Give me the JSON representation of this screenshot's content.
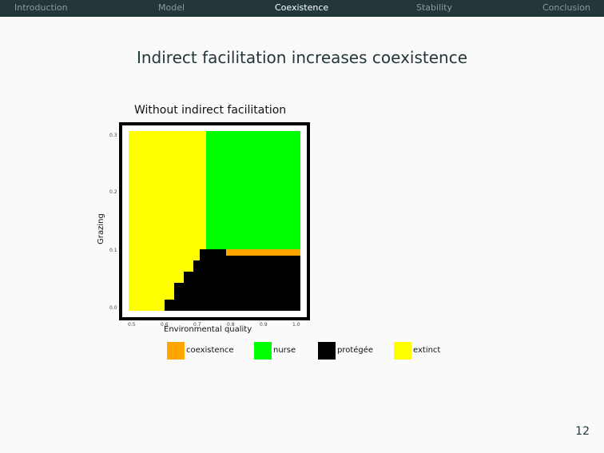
{
  "nav": [
    {
      "label": "Introduction",
      "active": false
    },
    {
      "label": "Model",
      "active": false
    },
    {
      "label": "Coexistence",
      "active": true
    },
    {
      "label": "Stability",
      "active": false
    },
    {
      "label": "Conclusion",
      "active": false
    }
  ],
  "slide": {
    "title": "Indirect facilitation increases coexistence",
    "page_number": "12"
  },
  "chart_data": {
    "type": "heatmap",
    "title": "Without indirect facilitation",
    "xlabel": "Environmental quality",
    "ylabel": "Grazing",
    "xlim": [
      0.47,
      1.0
    ],
    "ylim": [
      -0.01,
      0.31
    ],
    "x_ticks": [
      "0.5",
      "0.6",
      "0.7",
      "0.8",
      "0.9",
      "1.0"
    ],
    "y_ticks": [
      "0.0",
      "0.1",
      "0.2",
      "0.3"
    ],
    "legend": [
      {
        "label": "coexistence",
        "color": "#ffa500"
      },
      {
        "label": "nurse",
        "color": "#00ff00"
      },
      {
        "label": "protégée",
        "color": "#000000"
      },
      {
        "label": "extinct",
        "color": "#ffff00"
      }
    ],
    "regions": [
      {
        "state": "extinct",
        "x": [
          0.47,
          0.71
        ],
        "y": [
          -0.01,
          0.31
        ]
      },
      {
        "state": "nurse",
        "x": [
          0.71,
          1.0
        ],
        "y": [
          0.1,
          0.31
        ]
      },
      {
        "state": "coexistence",
        "x": [
          0.71,
          1.0
        ],
        "y": [
          0.08,
          0.1
        ]
      },
      {
        "state": "protégée",
        "x": [
          0.58,
          1.0
        ],
        "y": [
          -0.01,
          0.01
        ]
      },
      {
        "state": "protégée",
        "x": [
          0.61,
          1.0
        ],
        "y": [
          0.01,
          0.04
        ]
      },
      {
        "state": "protégée",
        "x": [
          0.64,
          1.0
        ],
        "y": [
          0.04,
          0.06
        ]
      },
      {
        "state": "protégée",
        "x": [
          0.67,
          1.0
        ],
        "y": [
          0.06,
          0.08
        ]
      },
      {
        "state": "protégée",
        "x": [
          0.69,
          1.0
        ],
        "y": [
          0.08,
          0.1
        ]
      },
      {
        "state": "coexistence",
        "x": [
          0.77,
          1.0
        ],
        "y": [
          0.08,
          0.1
        ]
      },
      {
        "state": "protégée",
        "x": [
          0.77,
          1.0
        ],
        "y": [
          0.08,
          0.088
        ]
      }
    ]
  }
}
